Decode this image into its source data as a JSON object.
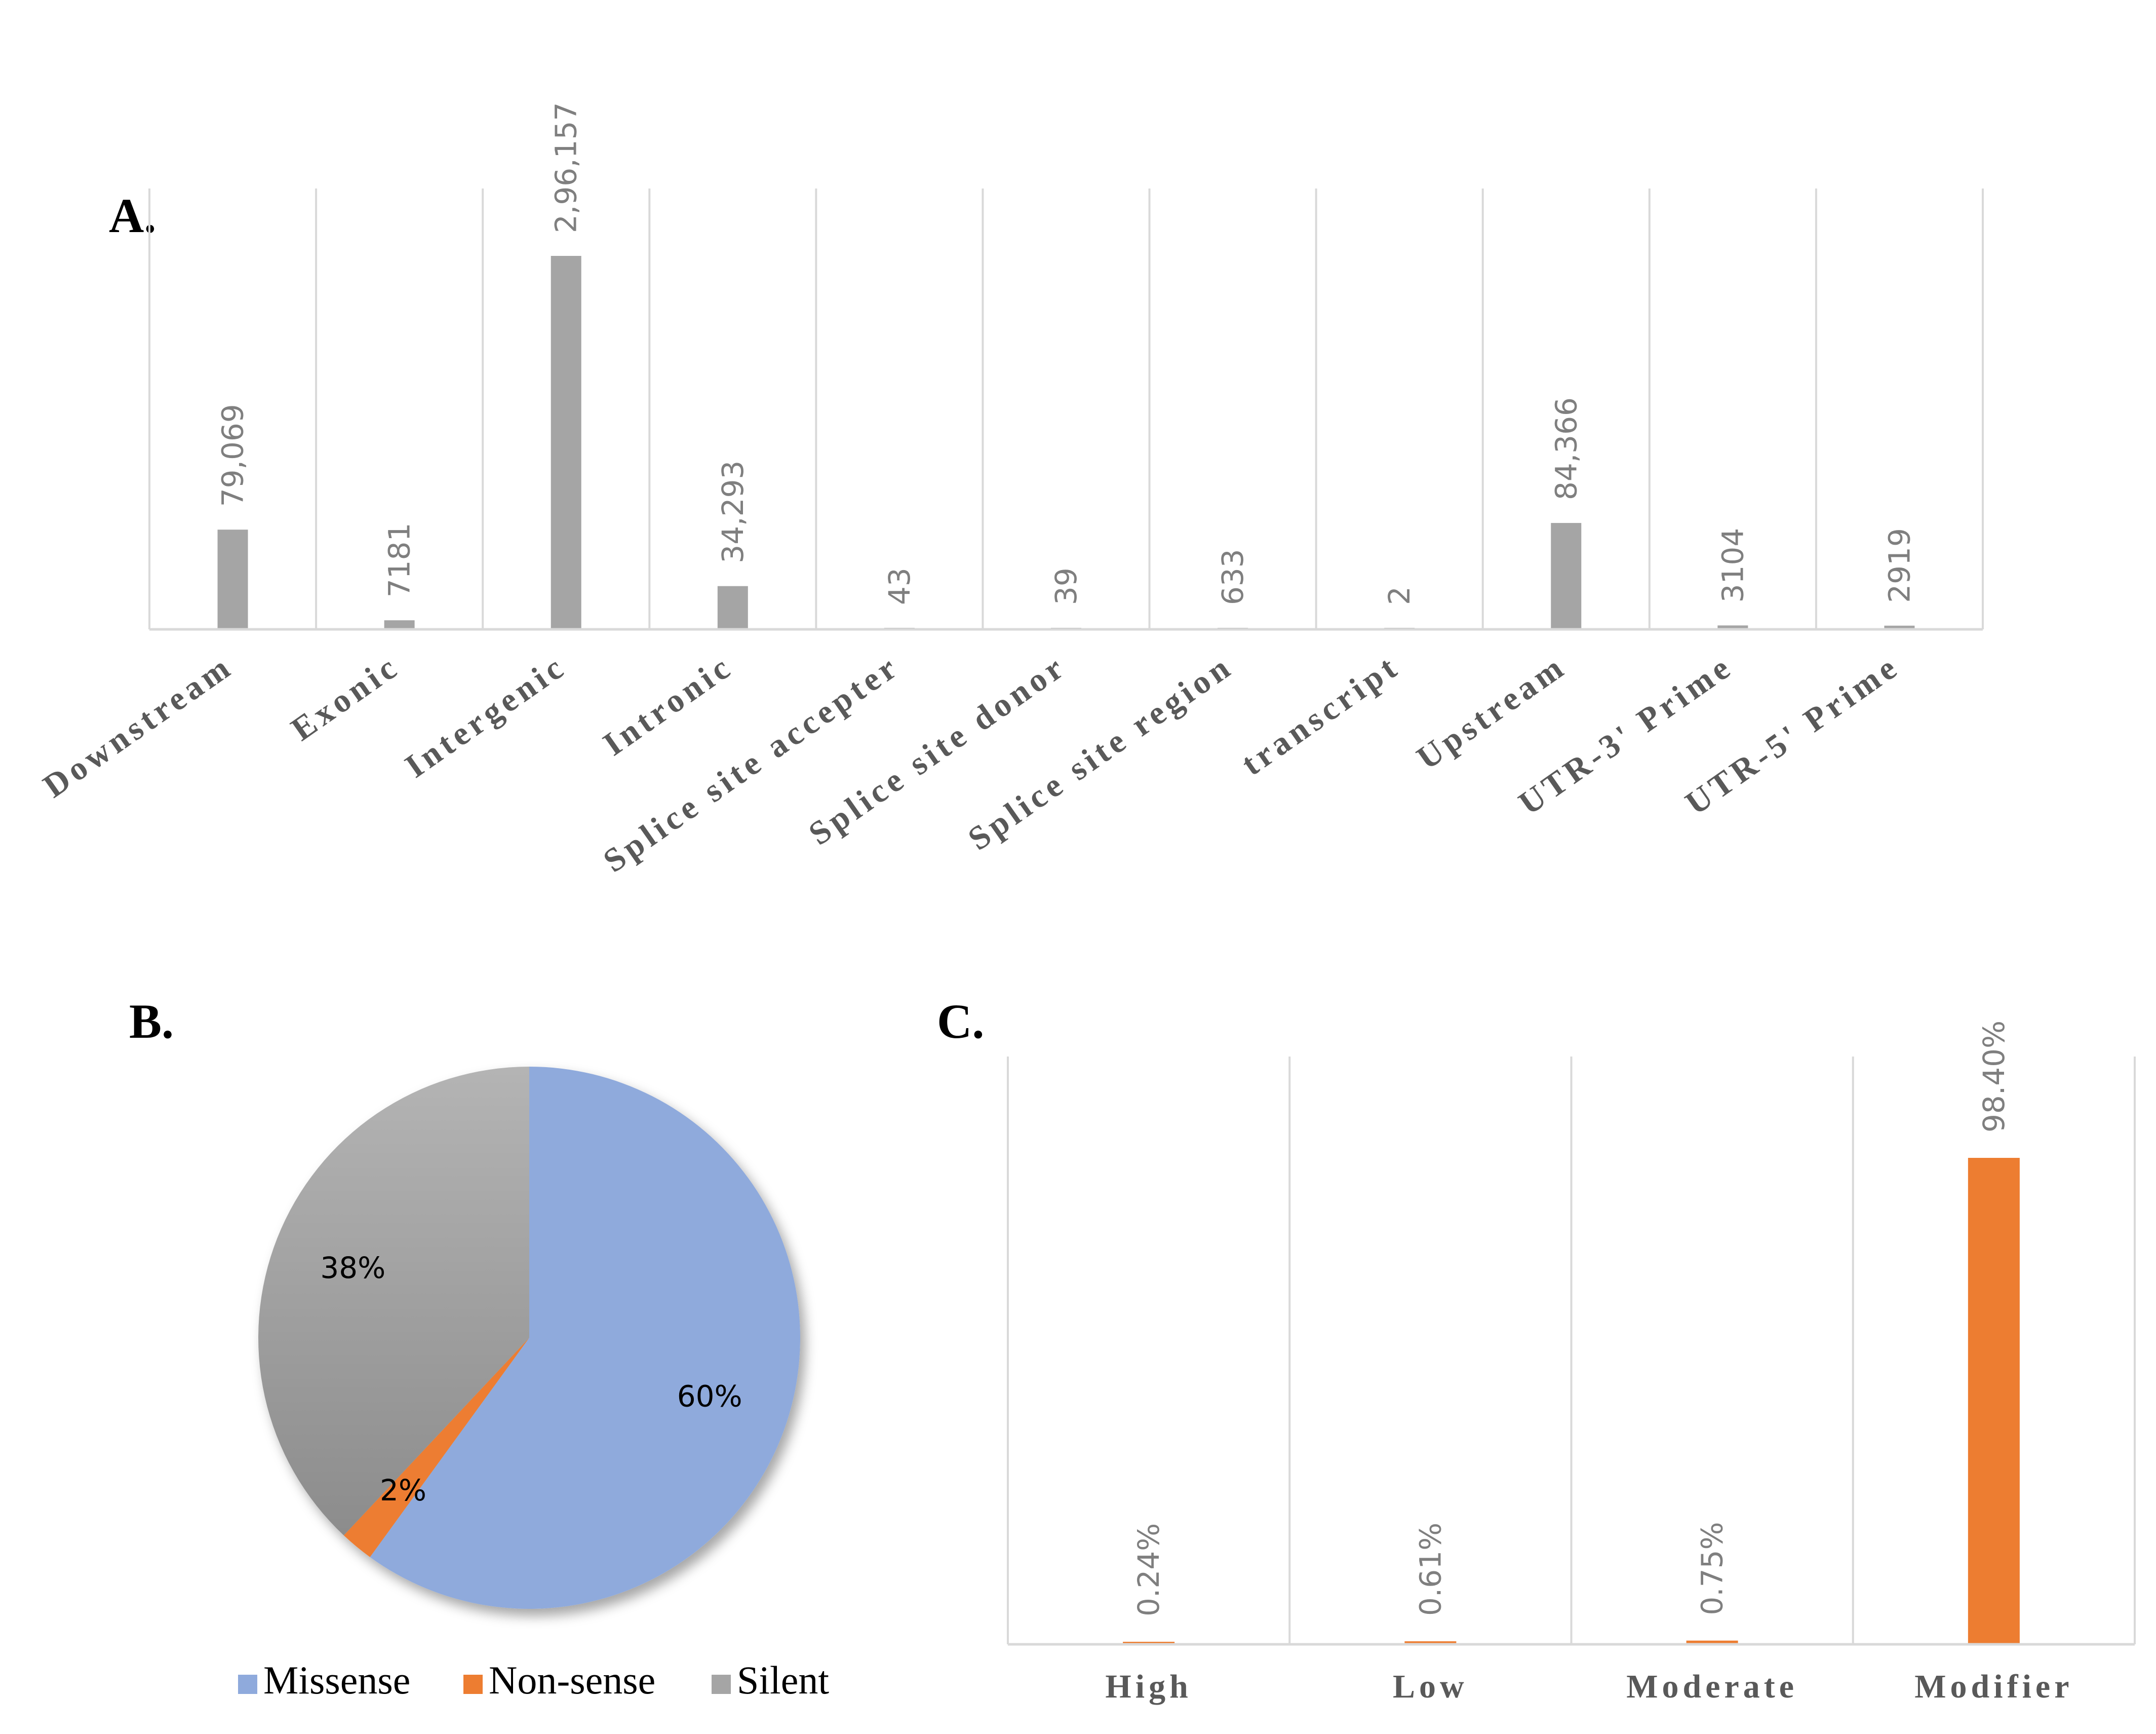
{
  "chart_data": [
    {
      "panel": "A.",
      "type": "bar",
      "categories": [
        "Downstream",
        "Exonic",
        "Intergenic",
        "Intronic",
        "Splice site accepter",
        "Splice site donor",
        "Splice site region",
        "transcript",
        "Upstream",
        "UTR-3' Prime",
        "UTR-5' Prime"
      ],
      "values": [
        79069,
        7181,
        296157,
        34293,
        43,
        39,
        633,
        2,
        84366,
        3104,
        2919
      ],
      "value_labels": [
        "79,069",
        "7181",
        "2,96,157",
        "34,293",
        "43",
        "39",
        "633",
        "2",
        "84,366",
        "3104",
        "2919"
      ],
      "ylim": [
        0,
        296157
      ],
      "color": "#a5a5a5"
    },
    {
      "panel": "B.",
      "type": "pie",
      "labels": [
        "Missense",
        "Non-sense",
        "Silent"
      ],
      "values": [
        60,
        2,
        38
      ],
      "value_labels": [
        "60%",
        "2%",
        "38%"
      ],
      "colors": [
        "#8faadc",
        "#ed7d31",
        "#a5a5a5"
      ]
    },
    {
      "panel": "C.",
      "type": "bar",
      "categories": [
        "High",
        "Low",
        "Moderate",
        "Modifier"
      ],
      "values": [
        0.24,
        0.61,
        0.75,
        98.4
      ],
      "value_labels": [
        "0.24%",
        "0.61%",
        "0.75%",
        "98.40%"
      ],
      "ylim": [
        0,
        98.4
      ],
      "color": "#ed7d31"
    }
  ]
}
